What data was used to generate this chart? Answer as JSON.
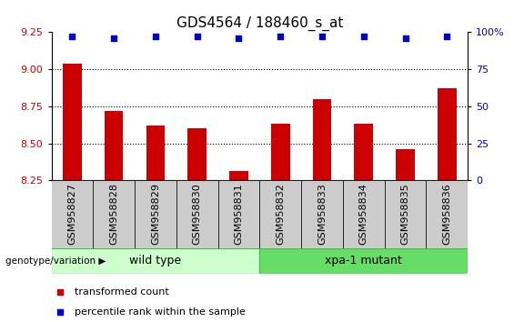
{
  "title": "GDS4564 / 188460_s_at",
  "samples": [
    "GSM958827",
    "GSM958828",
    "GSM958829",
    "GSM958830",
    "GSM958831",
    "GSM958832",
    "GSM958833",
    "GSM958834",
    "GSM958835",
    "GSM958836"
  ],
  "transformed_count": [
    9.04,
    8.72,
    8.62,
    8.6,
    8.31,
    8.63,
    8.8,
    8.63,
    8.46,
    8.87
  ],
  "percentile_values": [
    97,
    96,
    97,
    97,
    96,
    97,
    97,
    97,
    96,
    97
  ],
  "bar_color": "#cc0000",
  "dot_color": "#0000cc",
  "ylim_left": [
    8.25,
    9.25
  ],
  "ylim_right": [
    0,
    100
  ],
  "yticks_left": [
    8.25,
    8.5,
    8.75,
    9.0,
    9.25
  ],
  "yticks_right": [
    0,
    25,
    50,
    75,
    100
  ],
  "ytick_labels_right": [
    "0",
    "25",
    "50",
    "75",
    "100%"
  ],
  "groups": [
    {
      "name": "wild type",
      "start": 0,
      "end": 4,
      "color": "#ccffcc",
      "border": "#44bb44"
    },
    {
      "name": "xpa-1 mutant",
      "start": 5,
      "end": 9,
      "color": "#66dd66",
      "border": "#44bb44"
    }
  ],
  "group_label": "genotype/variation",
  "legend_items": [
    {
      "color": "#cc0000",
      "label": "transformed count"
    },
    {
      "color": "#0000cc",
      "label": "percentile rank within the sample"
    }
  ],
  "title_fontsize": 11,
  "tick_fontsize": 8,
  "bar_width": 0.45,
  "dot_size": 25,
  "xtick_bg_color": "#cccccc",
  "background_color": "#ffffff"
}
